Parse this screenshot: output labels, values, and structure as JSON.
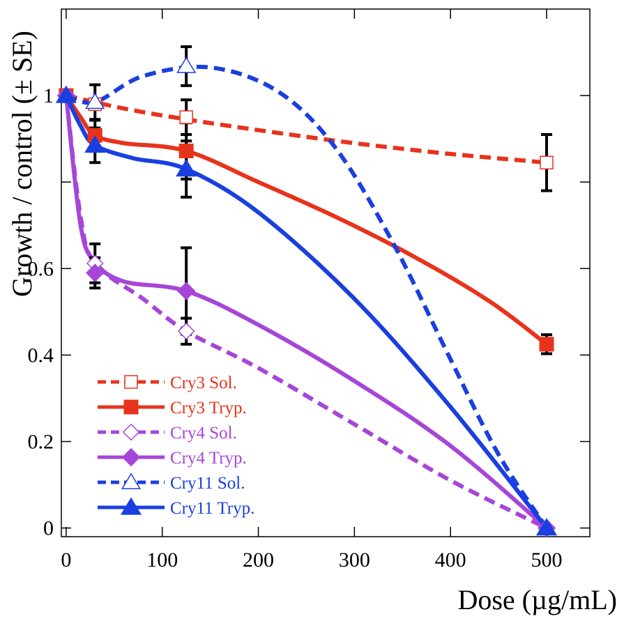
{
  "chart_data": {
    "type": "line",
    "title": "",
    "xlabel": "Dose (µg/mL)",
    "ylabel": "Growth / control (± SE)",
    "xlim": [
      -5,
      545
    ],
    "ylim": [
      -0.02,
      1.2
    ],
    "xticks": [
      0,
      100,
      200,
      300,
      400,
      500
    ],
    "xtick_labels": [
      "0",
      "100",
      "200",
      "300",
      "400",
      "500"
    ],
    "yticks": [
      0,
      0.2,
      0.4,
      0.6,
      0.8,
      1
    ],
    "ytick_labels": [
      "0",
      "0.2",
      "0.4",
      "0.6",
      "",
      "1"
    ],
    "grid": false,
    "legend_position": "bottom-left",
    "series": [
      {
        "name": "Cry3 Sol.",
        "color": "#e8331c",
        "dash": true,
        "marker": "square",
        "filled": false,
        "x": [
          0,
          30,
          125,
          500
        ],
        "y": [
          1.0,
          0.98,
          0.95,
          0.845
        ],
        "err": [
          0,
          0,
          0.04,
          0.065
        ],
        "curve_x": [
          0,
          60,
          125,
          200,
          300,
          400,
          500
        ],
        "curve_y": [
          1.0,
          0.97,
          0.945,
          0.92,
          0.89,
          0.865,
          0.845
        ]
      },
      {
        "name": "Cry3 Tryp.",
        "color": "#e8331c",
        "dash": false,
        "marker": "square",
        "filled": true,
        "x": [
          0,
          30,
          125,
          500
        ],
        "y": [
          1.0,
          0.908,
          0.872,
          0.425
        ],
        "err": [
          0,
          0.035,
          0.065,
          0.022
        ],
        "curve_x": [
          0,
          15,
          30,
          60,
          125,
          200,
          280,
          360,
          440,
          500
        ],
        "curve_y": [
          1.0,
          0.95,
          0.908,
          0.89,
          0.872,
          0.8,
          0.72,
          0.63,
          0.525,
          0.425
        ]
      },
      {
        "name": "Cry4 Sol.",
        "color": "#a646d8",
        "dash": true,
        "marker": "diamond",
        "filled": false,
        "x": [
          0,
          30,
          125,
          500
        ],
        "y": [
          1.0,
          0.612,
          0.455,
          0.0
        ],
        "err": [
          0,
          0.045,
          0.03,
          0
        ],
        "curve_x": [
          0,
          15,
          30,
          80,
          125,
          200,
          300,
          400,
          500
        ],
        "curve_y": [
          1.0,
          0.72,
          0.612,
          0.53,
          0.455,
          0.37,
          0.24,
          0.11,
          0.0
        ]
      },
      {
        "name": "Cry4 Tryp.",
        "color": "#a646d8",
        "dash": false,
        "marker": "diamond",
        "filled": true,
        "x": [
          0,
          30,
          125,
          500
        ],
        "y": [
          1.0,
          0.59,
          0.548,
          0.0
        ],
        "err": [
          0,
          0.035,
          0.1,
          0
        ],
        "curve_x": [
          0,
          15,
          30,
          60,
          125,
          200,
          300,
          400,
          500
        ],
        "curve_y": [
          1.0,
          0.7,
          0.615,
          0.57,
          0.548,
          0.47,
          0.34,
          0.19,
          0.0
        ]
      },
      {
        "name": "Cry11 Sol.",
        "color": "#1a3fe0",
        "dash": true,
        "marker": "triangle",
        "filled": false,
        "x": [
          0,
          30,
          125,
          500
        ],
        "y": [
          1.0,
          0.985,
          1.068,
          0.0
        ],
        "err": [
          0,
          0.04,
          0.045,
          0
        ],
        "curve_x": [
          0,
          30,
          80,
          150,
          220,
          280,
          340,
          400,
          450,
          500
        ],
        "curve_y": [
          1.0,
          0.985,
          1.045,
          1.065,
          1.01,
          0.88,
          0.66,
          0.39,
          0.17,
          0.0
        ]
      },
      {
        "name": "Cry11 Tryp.",
        "color": "#1a3fe0",
        "dash": false,
        "marker": "triangle",
        "filled": true,
        "x": [
          0,
          30,
          125,
          500
        ],
        "y": [
          1.0,
          0.885,
          0.83,
          0.0
        ],
        "err": [
          0,
          0.04,
          0.065,
          0
        ],
        "curve_x": [
          0,
          15,
          30,
          70,
          125,
          200,
          300,
          400,
          500
        ],
        "curve_y": [
          1.0,
          0.93,
          0.885,
          0.855,
          0.83,
          0.73,
          0.53,
          0.28,
          0.0
        ]
      }
    ]
  }
}
